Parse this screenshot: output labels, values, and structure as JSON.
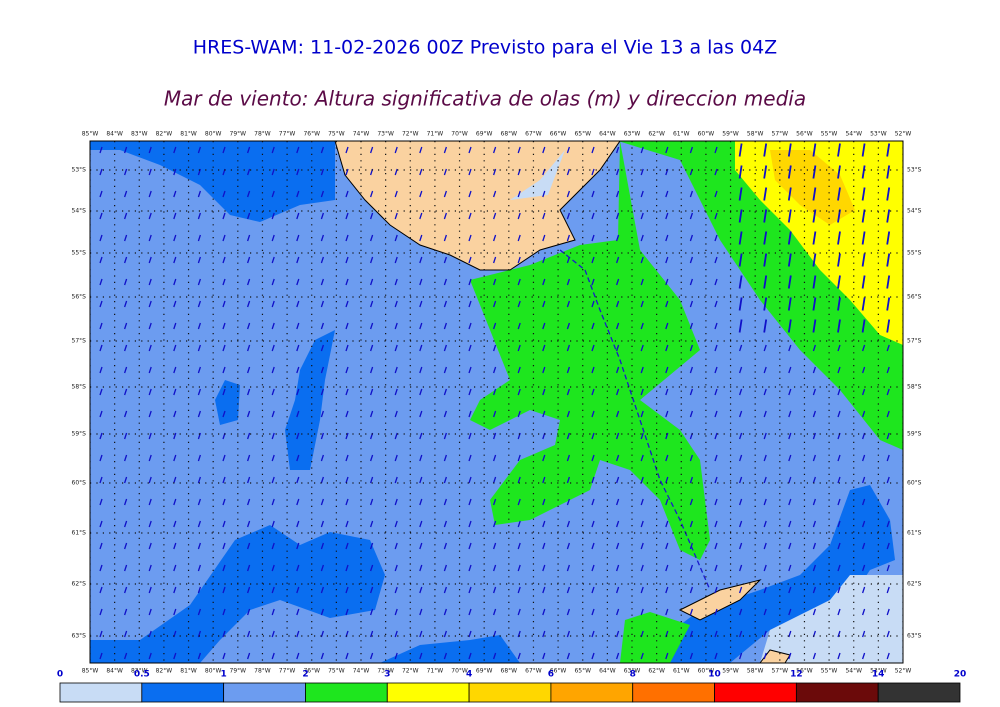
{
  "header": {
    "title": "HRES-WAM: 11-02-2026 00Z Previsto para el Vie 13 a las 04Z",
    "subtitle": "Mar de viento: Altura significativa de olas (m) y direccion media"
  },
  "map": {
    "lon_labels": [
      "85°W",
      "84°W",
      "83°W",
      "82°W",
      "81°W",
      "80°W",
      "79°W",
      "78°W",
      "77°W",
      "76°W",
      "75°W",
      "74°W",
      "73°W",
      "72°W",
      "71°W",
      "70°W",
      "69°W",
      "68°W",
      "67°W",
      "66°W",
      "65°W",
      "64°W",
      "63°W",
      "62°W",
      "61°W",
      "60°W",
      "59°W",
      "58°W",
      "57°W",
      "56°W",
      "55°W",
      "54°W",
      "53°W",
      "52°W"
    ],
    "lat_labels": [
      "53°S",
      "54°S",
      "55°S",
      "56°S",
      "57°S",
      "58°S",
      "59°S",
      "60°S",
      "61°S",
      "62°S",
      "63°S"
    ]
  },
  "legend": {
    "ticks": [
      0,
      0.5,
      1,
      2,
      3,
      4,
      6,
      8,
      10,
      12,
      14,
      20
    ],
    "colors": [
      "#c8dcf5",
      "#0a6ef0",
      "#6c9cf0",
      "#1ee61e",
      "#ffff00",
      "#ffd700",
      "#ffa500",
      "#ff7000",
      "#ff0000",
      "#6b0a0a",
      "#333333"
    ]
  }
}
